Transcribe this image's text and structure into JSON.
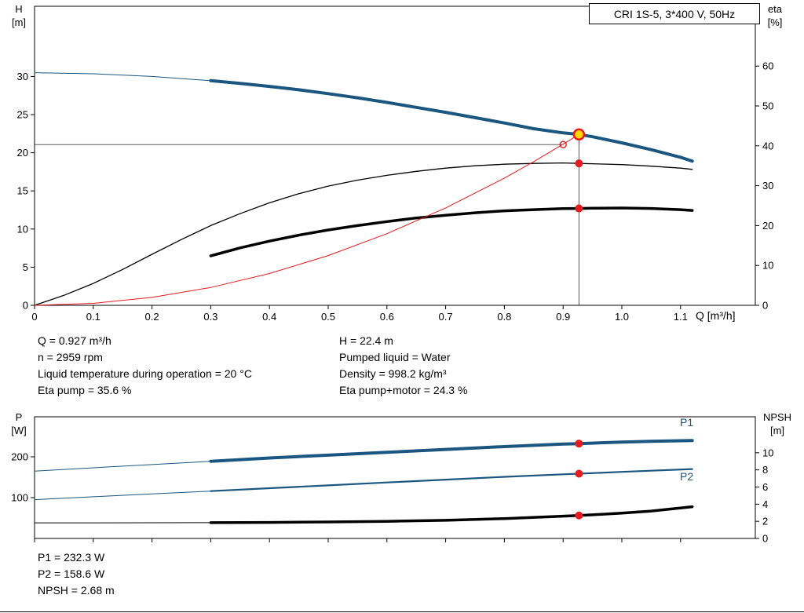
{
  "title_box": "CRI 1S-5, 3*400 V, 50Hz",
  "info_top": {
    "left": [
      "Q = 0.927 m³/h",
      "n = 2959 rpm",
      "Liquid temperature during operation = 20 °C",
      "Eta pump = 35.6 %"
    ],
    "right": [
      "H = 22.4 m",
      "Pumped liquid = Water",
      "Density = 998.2 kg/m³",
      "Eta pump+motor = 24.3 %"
    ]
  },
  "info_bottom": [
    "P1 = 232.3 W",
    "P2 = 158.6 W",
    "NPSH = 2.68 m"
  ],
  "chart_data": [
    {
      "type": "line",
      "title": "CRI 1S-5, 3*400 V, 50Hz",
      "x_axis": {
        "label": "Q [m³/h]",
        "min": 0,
        "max": 1.2273,
        "ticks": [
          0,
          0.1,
          0.2,
          0.3,
          0.4,
          0.5,
          0.6,
          0.7,
          0.8,
          0.9,
          1.0,
          1.1
        ],
        "tick_labels": [
          "0",
          "0.1",
          "0.2",
          "0.3",
          "0.4",
          "0.5",
          "0.6",
          "0.7",
          "0.8",
          "0.9",
          "1.0",
          "1.1"
        ]
      },
      "y_left": {
        "label": "H",
        "unit": "[m]",
        "min": 0,
        "max": 39.2,
        "ticks": [
          0,
          5,
          10,
          15,
          20,
          25,
          30
        ],
        "tick_labels": [
          "0",
          "5",
          "10",
          "15",
          "20",
          "25",
          "30"
        ]
      },
      "y_right": {
        "label": "eta",
        "unit": "[%]",
        "min": 0,
        "max": 75,
        "ticks": [
          0,
          10,
          20,
          30,
          40,
          50,
          60
        ],
        "tick_labels": [
          "0",
          "10",
          "20",
          "30",
          "40",
          "50",
          "60"
        ]
      },
      "guides": [
        {
          "type": "hline",
          "y": 21.07,
          "x_to": 0.9,
          "axis": "left"
        },
        {
          "type": "vline",
          "x": 0.927,
          "y_to": 22.4,
          "axis": "left"
        }
      ],
      "series": [
        {
          "name": "qh-curve-inlet",
          "axis": "left",
          "color": "#1a567f",
          "width": 1,
          "points": [
            [
              0,
              30.5
            ],
            [
              0.1,
              30.35
            ],
            [
              0.2,
              30.0
            ],
            [
              0.3,
              29.45
            ]
          ]
        },
        {
          "name": "qh-curve",
          "axis": "left",
          "color": "#1a567f",
          "width": 4,
          "points": [
            [
              0.3,
              29.45
            ],
            [
              0.35,
              29.1
            ],
            [
              0.4,
              28.7
            ],
            [
              0.45,
              28.25
            ],
            [
              0.5,
              27.75
            ],
            [
              0.55,
              27.2
            ],
            [
              0.6,
              26.6
            ],
            [
              0.65,
              25.95
            ],
            [
              0.7,
              25.3
            ],
            [
              0.75,
              24.6
            ],
            [
              0.8,
              23.9
            ],
            [
              0.85,
              23.15
            ],
            [
              0.9,
              22.6
            ],
            [
              0.927,
              22.4
            ],
            [
              0.95,
              22.1
            ],
            [
              1.0,
              21.3
            ],
            [
              1.05,
              20.4
            ],
            [
              1.1,
              19.4
            ],
            [
              1.12,
              18.9
            ]
          ]
        },
        {
          "name": "eta-pump-curve",
          "axis": "right",
          "color": "#000000",
          "width": 1.3,
          "points": [
            [
              0,
              0
            ],
            [
              0.05,
              2.5
            ],
            [
              0.1,
              5.5
            ],
            [
              0.15,
              9
            ],
            [
              0.2,
              12.8
            ],
            [
              0.25,
              16.5
            ],
            [
              0.3,
              20
            ],
            [
              0.35,
              23
            ],
            [
              0.4,
              25.7
            ],
            [
              0.45,
              28
            ],
            [
              0.5,
              29.9
            ],
            [
              0.55,
              31.4
            ],
            [
              0.6,
              32.6
            ],
            [
              0.65,
              33.6
            ],
            [
              0.7,
              34.4
            ],
            [
              0.75,
              35
            ],
            [
              0.8,
              35.4
            ],
            [
              0.85,
              35.6
            ],
            [
              0.9,
              35.7
            ],
            [
              0.927,
              35.6
            ],
            [
              1.0,
              35.3
            ],
            [
              1.05,
              34.9
            ],
            [
              1.1,
              34.4
            ],
            [
              1.12,
              34.1
            ]
          ]
        },
        {
          "name": "eta-pump-motor-curve",
          "axis": "right",
          "color": "#000000",
          "width": 3.5,
          "points": [
            [
              0.3,
              12.4
            ],
            [
              0.35,
              14.4
            ],
            [
              0.4,
              16.1
            ],
            [
              0.45,
              17.6
            ],
            [
              0.5,
              18.9
            ],
            [
              0.55,
              20
            ],
            [
              0.6,
              21
            ],
            [
              0.65,
              21.9
            ],
            [
              0.7,
              22.6
            ],
            [
              0.75,
              23.2
            ],
            [
              0.8,
              23.7
            ],
            [
              0.85,
              24
            ],
            [
              0.9,
              24.25
            ],
            [
              0.927,
              24.3
            ],
            [
              0.95,
              24.35
            ],
            [
              1.0,
              24.4
            ],
            [
              1.05,
              24.3
            ],
            [
              1.1,
              24
            ],
            [
              1.12,
              23.8
            ]
          ]
        },
        {
          "name": "system-curve",
          "axis": "left",
          "color": "#e8191f",
          "width": 1,
          "points": [
            [
              0,
              0
            ],
            [
              0.1,
              0.26
            ],
            [
              0.2,
              1.04
            ],
            [
              0.3,
              2.35
            ],
            [
              0.4,
              4.17
            ],
            [
              0.5,
              6.52
            ],
            [
              0.6,
              9.39
            ],
            [
              0.7,
              12.77
            ],
            [
              0.8,
              16.68
            ],
            [
              0.85,
              18.84
            ],
            [
              0.9,
              21.12
            ],
            [
              0.927,
              22.4
            ]
          ]
        }
      ],
      "markers": [
        {
          "name": "duty-point",
          "x": 0.927,
          "y": 22.4,
          "axis": "left",
          "r": 6.5,
          "fill": "#ffd800",
          "stroke": "#e8191f",
          "stroke_width": 2.5
        },
        {
          "name": "rated-flow-point",
          "x": 0.9,
          "y": 21.07,
          "axis": "left",
          "r": 4,
          "fill": "none",
          "stroke": "#e8191f",
          "stroke_width": 1.4
        },
        {
          "name": "eta-pump-point",
          "x": 0.927,
          "y": 35.6,
          "axis": "right",
          "r": 5,
          "fill": "#e8191f"
        },
        {
          "name": "eta-pump-motor-point",
          "x": 0.927,
          "y": 24.3,
          "axis": "right",
          "r": 5,
          "fill": "#e8191f"
        }
      ]
    },
    {
      "type": "line",
      "x_axis": {
        "label": "",
        "min": 0,
        "max": 1.2273,
        "ticks": [
          0,
          0.1,
          0.2,
          0.3,
          0.4,
          0.5,
          0.6,
          0.7,
          0.8,
          0.9,
          1.0,
          1.1
        ]
      },
      "y_left": {
        "label": "P",
        "unit": "[W]",
        "min": 0,
        "max": 298,
        "ticks": [
          100,
          200
        ],
        "tick_labels": [
          "100",
          "200"
        ]
      },
      "y_right": {
        "label": "NPSH",
        "unit": "[m]",
        "min": 0,
        "max": 14.2,
        "ticks": [
          0,
          2,
          4,
          6,
          8,
          10
        ],
        "tick_labels": [
          "0",
          "2",
          "4",
          "6",
          "8",
          "10"
        ]
      },
      "series_labels": [
        "P1",
        "P2"
      ],
      "series": [
        {
          "name": "p1-curve-inlet",
          "axis": "left",
          "color": "#1a567f",
          "width": 1,
          "points": [
            [
              0,
              165
            ],
            [
              0.1,
              173
            ],
            [
              0.2,
              181
            ],
            [
              0.3,
              189
            ]
          ]
        },
        {
          "name": "p1-curve",
          "axis": "left",
          "color": "#1a567f",
          "width": 4,
          "points": [
            [
              0.3,
              189
            ],
            [
              0.4,
              197
            ],
            [
              0.5,
              204
            ],
            [
              0.6,
              211
            ],
            [
              0.7,
              218
            ],
            [
              0.8,
              225
            ],
            [
              0.9,
              231
            ],
            [
              0.927,
              232.3
            ],
            [
              1.0,
              236
            ],
            [
              1.05,
              238
            ],
            [
              1.12,
              240
            ]
          ]
        },
        {
          "name": "p2-curve-inlet",
          "axis": "left",
          "color": "#1a567f",
          "width": 1,
          "points": [
            [
              0,
              95
            ],
            [
              0.1,
              102
            ],
            [
              0.2,
              109
            ],
            [
              0.3,
              116
            ]
          ]
        },
        {
          "name": "p2-curve",
          "axis": "left",
          "color": "#1a567f",
          "width": 2.2,
          "points": [
            [
              0.3,
              116
            ],
            [
              0.4,
              123
            ],
            [
              0.5,
              130
            ],
            [
              0.6,
              137
            ],
            [
              0.7,
              144
            ],
            [
              0.8,
              151
            ],
            [
              0.9,
              157
            ],
            [
              0.927,
              158.6
            ],
            [
              1.0,
              163
            ],
            [
              1.05,
              166
            ],
            [
              1.12,
              170
            ]
          ]
        },
        {
          "name": "npsh-curve-inlet",
          "axis": "right",
          "color": "#000000",
          "width": 1,
          "points": [
            [
              0,
              1.82
            ],
            [
              0.1,
              1.82
            ],
            [
              0.2,
              1.83
            ],
            [
              0.3,
              1.84
            ]
          ]
        },
        {
          "name": "npsh-curve",
          "axis": "right",
          "color": "#000000",
          "width": 3.5,
          "points": [
            [
              0.3,
              1.84
            ],
            [
              0.4,
              1.87
            ],
            [
              0.5,
              1.92
            ],
            [
              0.6,
              2.0
            ],
            [
              0.7,
              2.12
            ],
            [
              0.8,
              2.32
            ],
            [
              0.9,
              2.6
            ],
            [
              0.927,
              2.68
            ],
            [
              0.95,
              2.76
            ],
            [
              1.0,
              2.95
            ],
            [
              1.05,
              3.2
            ],
            [
              1.12,
              3.7
            ]
          ]
        }
      ],
      "markers": [
        {
          "name": "p1-point",
          "x": 0.927,
          "y": 232.3,
          "axis": "left",
          "r": 5,
          "fill": "#e8191f"
        },
        {
          "name": "p2-point",
          "x": 0.927,
          "y": 158.6,
          "axis": "left",
          "r": 5,
          "fill": "#e8191f"
        },
        {
          "name": "npsh-point",
          "x": 0.927,
          "y": 2.68,
          "axis": "right",
          "r": 5,
          "fill": "#e8191f"
        }
      ]
    }
  ]
}
